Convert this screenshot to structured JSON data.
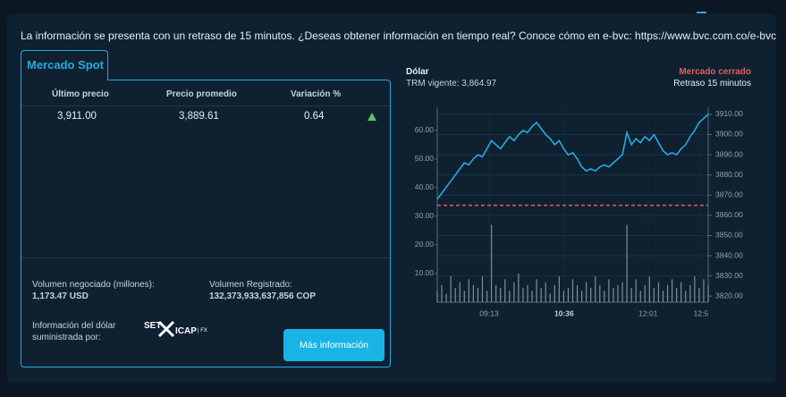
{
  "notice": "La información se presenta con un retraso de 15 minutos. ¿Deseas obtener información en tiempo real? Conoce cómo en e-bvc: https://www.bvc.com.co/e-bvc",
  "spot": {
    "tab": "Mercado Spot",
    "headers": [
      "Último precio",
      "Precio promedio",
      "Variación %"
    ],
    "row": [
      "3,911.00",
      "3,889.61",
      "0.64"
    ],
    "volume_label": "Volumen negociado (millones):",
    "volume_value": "1,173.47 USD",
    "registered_label": "Volumen Registrado:",
    "registered_value": "132,373,933,637,856 COP",
    "provider_label": [
      "Información del dólar",
      "suministrada por:"
    ],
    "provider_logo": [
      "SET",
      "ICAP",
      "| FX"
    ],
    "button": "Más información"
  },
  "chart": {
    "title": "Dólar",
    "trm": "TRM vigente: 3,864.97",
    "status": "Mercado cerrado",
    "delay": "Retraso 15 minutos",
    "price_color": "#29a9e0",
    "volume_color": "#7d8d9b",
    "reference_color": "#e85c5c",
    "reference": 3864.97,
    "xlim": [
      0,
      60
    ],
    "xticks": [
      {
        "value": 11.5,
        "label": "09:13"
      },
      {
        "value": 28.1,
        "label": "10:36"
      },
      {
        "value": 46.7,
        "label": "12:01"
      },
      {
        "value": 58.4,
        "label": "12:5"
      }
    ],
    "ylim": [
      0,
      68
    ],
    "yticks": [
      {
        "value": 10,
        "label": "10.00"
      },
      {
        "value": 20,
        "label": "20.00"
      },
      {
        "value": 30,
        "label": "30.00"
      },
      {
        "value": 40,
        "label": "40.00"
      },
      {
        "value": 50,
        "label": "50.00"
      },
      {
        "value": 60,
        "label": "60.00"
      }
    ],
    "y2lim": [
      3817,
      3913.5
    ],
    "y2ticks": [
      {
        "value": 3820,
        "label": "3820.00"
      },
      {
        "value": 3830,
        "label": "3830.00"
      },
      {
        "value": 3840,
        "label": "3840.00"
      },
      {
        "value": 3850,
        "label": "3850.00"
      },
      {
        "value": 3860,
        "label": "3860.00"
      },
      {
        "value": 3870,
        "label": "3870.00"
      },
      {
        "value": 3880,
        "label": "3880.00"
      },
      {
        "value": 3890,
        "label": "3890.00"
      },
      {
        "value": 3900,
        "label": "3900.00"
      },
      {
        "value": 3910,
        "label": "3910.00"
      }
    ],
    "price": [
      3868,
      3871,
      3874,
      3877,
      3880,
      3883,
      3886,
      3885,
      3888,
      3890,
      3889,
      3893,
      3897,
      3895,
      3893,
      3896,
      3899,
      3897,
      3900,
      3902,
      3901,
      3904,
      3906,
      3903,
      3900,
      3898,
      3895,
      3897,
      3893,
      3890,
      3891,
      3888,
      3884,
      3882,
      3883,
      3882,
      3884,
      3885,
      3884,
      3886,
      3888,
      3890,
      3901,
      3895,
      3898,
      3896,
      3899,
      3897,
      3900,
      3896,
      3892,
      3890,
      3891,
      3890,
      3893,
      3895,
      3899,
      3902,
      3906,
      3908,
      3910
    ],
    "volume": [
      4,
      6,
      3,
      9,
      5,
      7,
      4,
      8,
      6,
      5,
      9,
      4,
      27,
      6,
      5,
      8,
      4,
      7,
      10,
      5,
      6,
      4,
      8,
      5,
      7,
      3,
      6,
      9,
      4,
      5,
      8,
      6,
      4,
      7,
      5,
      9,
      6,
      4,
      8,
      5,
      6,
      7,
      27,
      5,
      8,
      4,
      6,
      9,
      5,
      7,
      4,
      6,
      8,
      5,
      7,
      4,
      6,
      9,
      5,
      8,
      6
    ]
  }
}
